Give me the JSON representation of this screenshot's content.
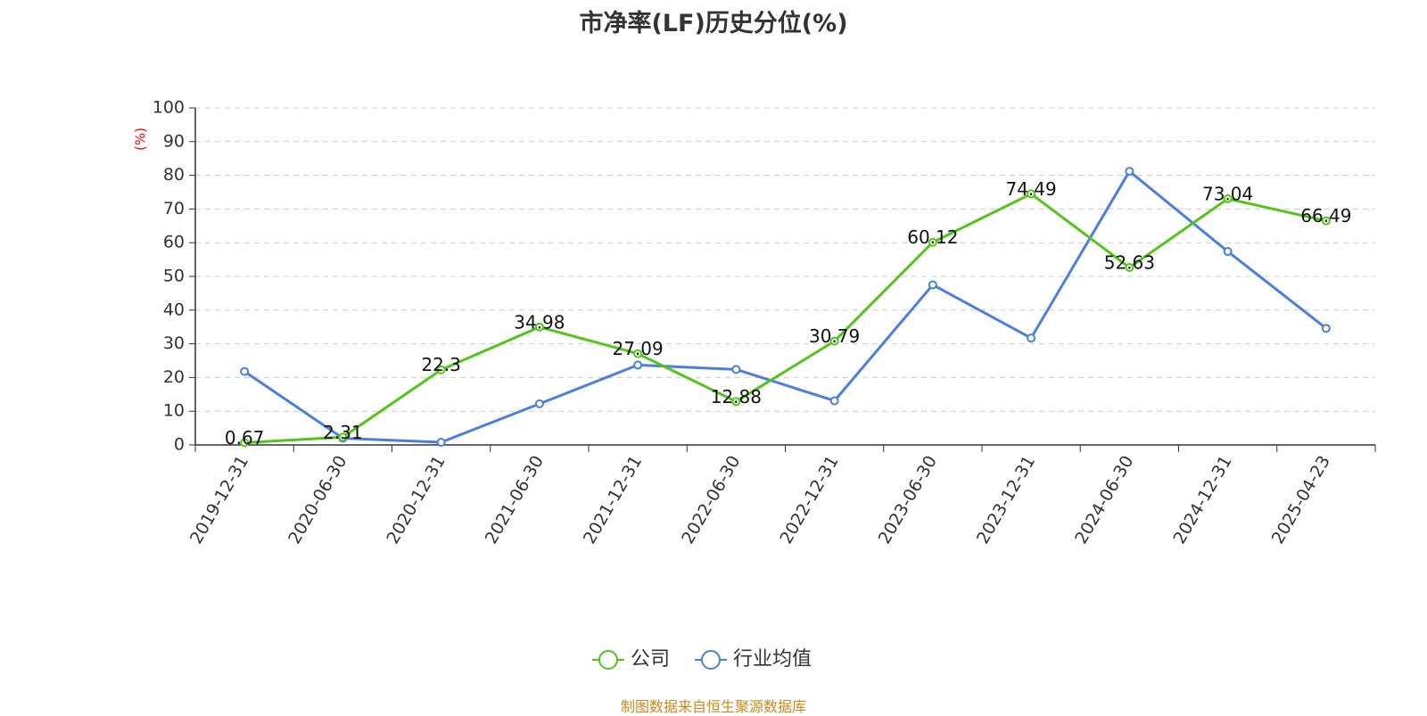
{
  "chart_data": {
    "type": "line",
    "title": "市净率(LF)历史分位(%)",
    "ylabel": "(%)",
    "xlabel": "",
    "categories": [
      "2019-12-31",
      "2020-06-30",
      "2020-12-31",
      "2021-06-30",
      "2021-12-31",
      "2022-06-30",
      "2022-12-31",
      "2023-06-30",
      "2023-12-31",
      "2024-06-30",
      "2024-12-31",
      "2025-04-23"
    ],
    "ylim": [
      0,
      100
    ],
    "yticks": [
      "0",
      "10",
      "20",
      "30",
      "40",
      "50",
      "60",
      "70",
      "80",
      "90",
      "100"
    ],
    "grid": true,
    "legend_position": "bottom",
    "series": [
      {
        "name": "公司",
        "color": "#52c41a",
        "values": [
          0.67,
          2.31,
          22.3,
          34.98,
          27.09,
          12.88,
          30.79,
          60.12,
          74.49,
          52.63,
          73.04,
          66.49
        ],
        "labels": [
          "0.67",
          "2.31",
          "22.3",
          "34.98",
          "27.09",
          "12.88",
          "30.79",
          "60.12",
          "74.49",
          "52.63",
          "73.04",
          "66.49"
        ]
      },
      {
        "name": "行业均值",
        "color": "#4a7fdc",
        "values": [
          21.8,
          2.0,
          0.8,
          12.2,
          23.7,
          22.4,
          13.1,
          47.5,
          31.7,
          81.2,
          57.4,
          34.6
        ]
      }
    ]
  },
  "footer": {
    "source": "制图数据来自恒生聚源数据库"
  }
}
